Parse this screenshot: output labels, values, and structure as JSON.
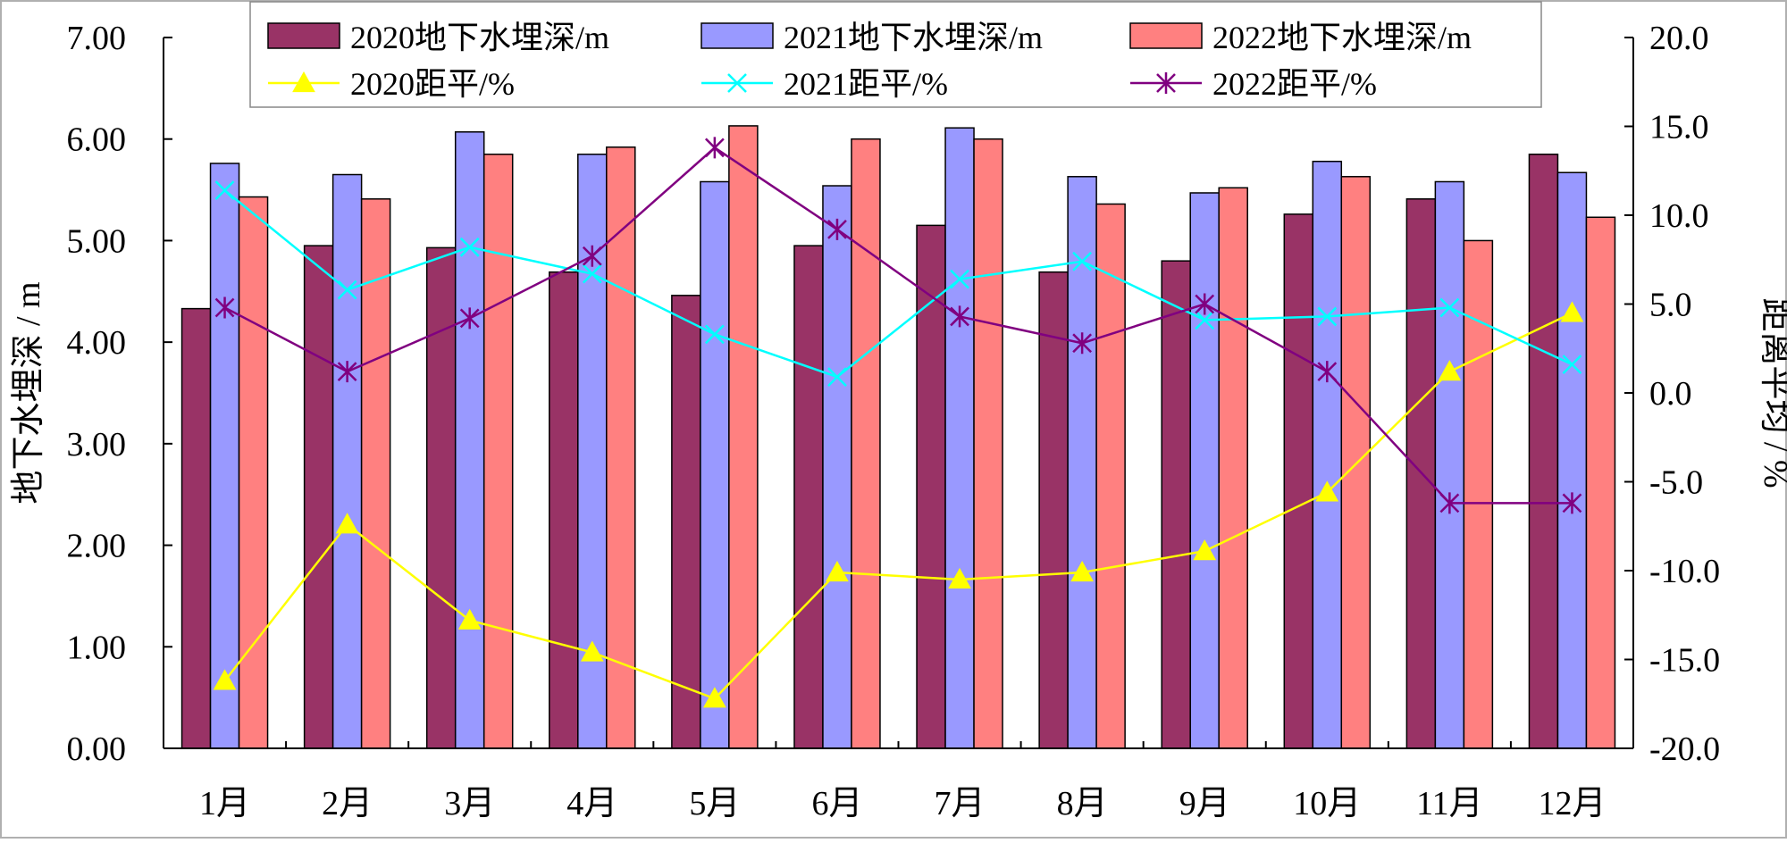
{
  "chart_data": {
    "type": "bar",
    "categories": [
      "1月",
      "2月",
      "3月",
      "4月",
      "5月",
      "6月",
      "7月",
      "8月",
      "9月",
      "10月",
      "11月",
      "12月"
    ],
    "ylabel": "地下水埋深 / m",
    "y2label": "距离平均 / %",
    "ylim": [
      0,
      7
    ],
    "y2lim": [
      -20,
      20
    ],
    "yticks": [
      "0.00",
      "1.00",
      "2.00",
      "3.00",
      "4.00",
      "5.00",
      "6.00",
      "7.00"
    ],
    "y2ticks": [
      "-20.0",
      "-15.0",
      "-10.0",
      "-5.0",
      "0.0",
      "5.0",
      "10.0",
      "15.0",
      "20.0"
    ],
    "grid": false,
    "legend_position": "top",
    "bar_series": [
      {
        "name": "2020地下水埋深/m",
        "color": "#993366",
        "values": [
          4.33,
          4.95,
          4.93,
          4.69,
          4.46,
          4.95,
          5.15,
          4.69,
          4.8,
          5.26,
          5.41,
          5.85
        ]
      },
      {
        "name": "2021地下水埋深/m",
        "color": "#9999FF",
        "values": [
          5.76,
          5.65,
          6.07,
          5.85,
          5.58,
          5.54,
          6.11,
          5.63,
          5.47,
          5.78,
          5.58,
          5.67
        ]
      },
      {
        "name": "2022地下水埋深/m",
        "color": "#FF8080",
        "values": [
          5.43,
          5.41,
          5.85,
          5.92,
          6.13,
          6.0,
          6.0,
          5.36,
          5.52,
          5.63,
          5.0,
          5.23
        ]
      }
    ],
    "line_series": [
      {
        "name": "2020距平/%",
        "color": "#FFFF00",
        "marker": "triangle",
        "values": [
          -16.2,
          -7.4,
          -12.8,
          -14.6,
          -17.2,
          -10.1,
          -10.5,
          -10.1,
          -8.9,
          -5.6,
          1.2,
          4.5
        ]
      },
      {
        "name": "2021距平/%",
        "color": "#00FFFF",
        "marker": "x",
        "values": [
          11.4,
          5.8,
          8.2,
          6.7,
          3.3,
          0.9,
          6.4,
          7.4,
          4.1,
          4.3,
          4.8,
          1.6
        ]
      },
      {
        "name": "2022距平/%",
        "color": "#800080",
        "marker": "star",
        "values": [
          4.8,
          1.2,
          4.2,
          7.7,
          13.8,
          9.2,
          4.3,
          2.8,
          5.0,
          1.2,
          -6.2,
          -6.2
        ]
      }
    ]
  }
}
